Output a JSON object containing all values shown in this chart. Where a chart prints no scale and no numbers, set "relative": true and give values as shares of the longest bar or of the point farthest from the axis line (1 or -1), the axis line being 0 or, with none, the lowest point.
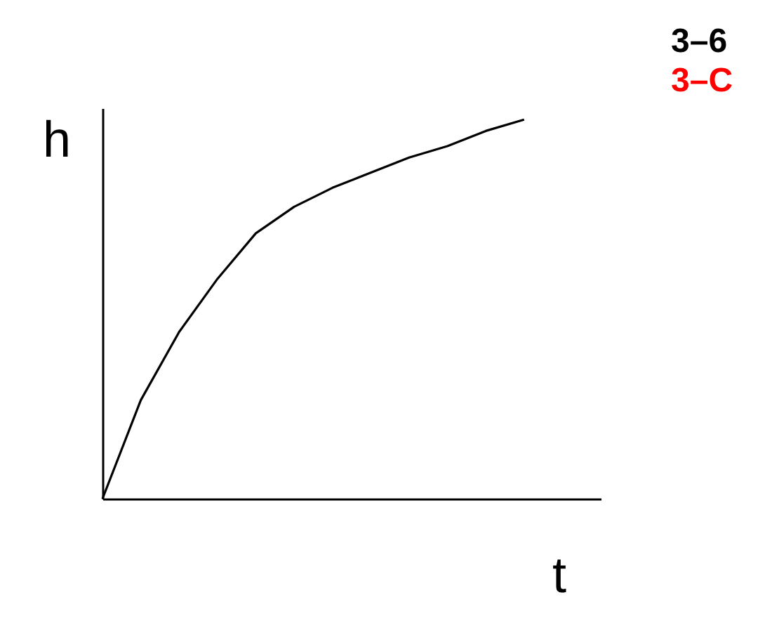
{
  "chart_data": {
    "type": "line",
    "xlabel": "t",
    "ylabel": "h",
    "relative": true,
    "categories": [
      null,
      null,
      null,
      null,
      null,
      null,
      null,
      null,
      null,
      null,
      null,
      null,
      null,
      null
    ],
    "values": [
      0,
      0.26,
      0.44,
      0.58,
      0.7,
      0.77,
      0.82,
      0.86,
      0.9,
      0.93,
      0.97,
      1,
      null,
      null
    ],
    "color": "#000000",
    "marker": "none",
    "line_style": "solid",
    "annotations": [
      "3–6",
      "3–C"
    ]
  }
}
